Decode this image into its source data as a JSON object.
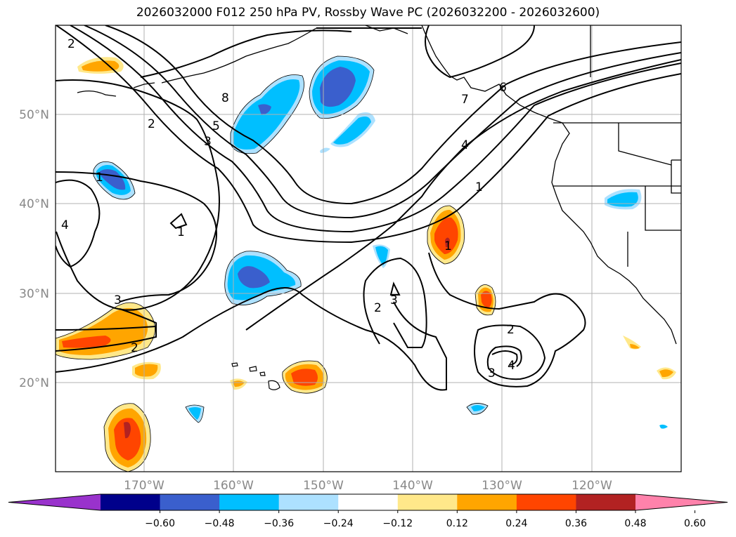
{
  "title": "2026032000 F012 250 hPa PV, Rossby Wave PC (2026032200 - 2026032600)",
  "map": {
    "lat_labels": [
      "50°N",
      "40°N",
      "30°N",
      "20°N"
    ],
    "lon_labels": [
      "170°W",
      "160°W",
      "150°W",
      "140°W",
      "130°W",
      "120°W"
    ],
    "extent": {
      "lon_min": -180,
      "lon_max": -110,
      "lat_min": 10,
      "lat_max": 60
    },
    "grid": true,
    "coastline_color": "#000000",
    "contour_color": "#000000",
    "pv_contour_labels": [
      "2",
      "1",
      "8",
      "7",
      "6",
      "5",
      "3",
      "2",
      "4",
      "1",
      "1",
      "1",
      "4",
      "3",
      "2",
      "3",
      "2",
      "2",
      "3",
      "4"
    ]
  },
  "colorbar": {
    "ticks": [
      "−0.60",
      "−0.48",
      "−0.36",
      "−0.24",
      "−0.12",
      "0.12",
      "0.24",
      "0.36",
      "0.48",
      "0.60"
    ],
    "colors": [
      "#9932CC",
      "#00008B",
      "#3A5FCD",
      "#00BFFF",
      "#ADE1FF",
      "#FFFFFF",
      "#FFE88A",
      "#FFA500",
      "#FF4500",
      "#B22222",
      "#FF82AB"
    ]
  }
}
